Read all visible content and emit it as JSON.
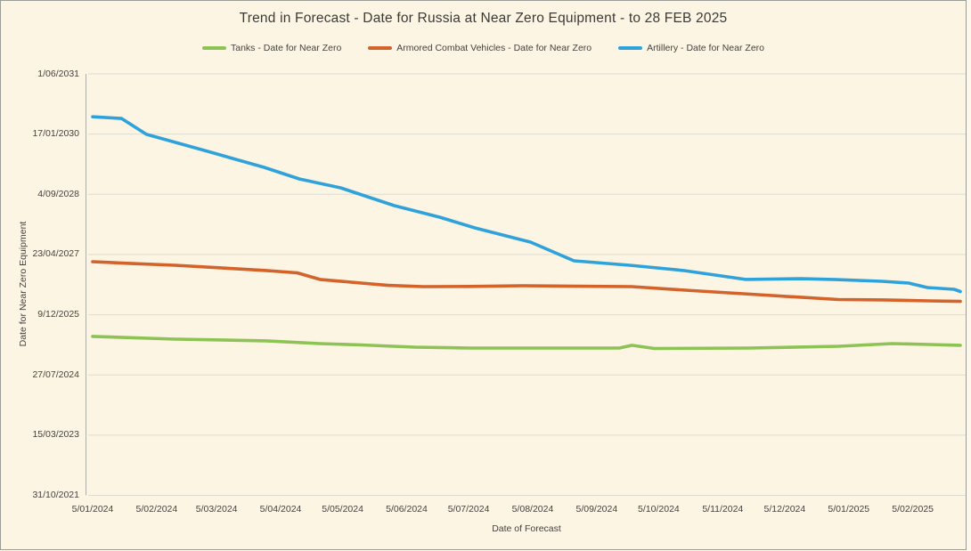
{
  "colors": {
    "background": "#fcf5e3",
    "border": "#9d9d98",
    "gridline": "#dddcd3",
    "axis": "#aeada6",
    "text": "#45423e",
    "title_text": "#3b3a36"
  },
  "chart_data": {
    "type": "line",
    "title": "Trend in Forecast - Date for Russia at Near Zero Equipment - to 28 FEB 2025",
    "xlabel": "Date of Forecast",
    "ylabel": "Date for Near Zero Equipment",
    "legend_position": "top",
    "grid": true,
    "x_domain": [
      "5/01/2024",
      "28/02/2025"
    ],
    "y_domain": [
      "31/10/2021",
      "1/06/2031"
    ],
    "x_ticks": [
      "5/01/2024",
      "5/02/2024",
      "5/03/2024",
      "5/04/2024",
      "5/05/2024",
      "5/06/2024",
      "5/07/2024",
      "5/08/2024",
      "5/09/2024",
      "5/10/2024",
      "5/11/2024",
      "5/12/2024",
      "5/01/2025",
      "5/02/2025"
    ],
    "y_ticks": [
      "1/06/2031",
      "17/01/2030",
      "4/09/2028",
      "23/04/2027",
      "9/12/2025",
      "27/07/2024",
      "15/03/2023",
      "31/10/2021"
    ],
    "series": [
      {
        "name": "Tanks - Date for Near Zero",
        "color": "#8dc254",
        "points": [
          [
            "5/01/2024",
            "12/06/2025"
          ],
          [
            "14/02/2024",
            "20/05/2025"
          ],
          [
            "29/03/2024",
            "6/05/2025"
          ],
          [
            "24/04/2024",
            "13/04/2025"
          ],
          [
            "14/05/2024",
            "2/04/2025"
          ],
          [
            "9/06/2024",
            "15/03/2025"
          ],
          [
            "5/07/2024",
            "7/03/2025"
          ],
          [
            "16/09/2024",
            "7/03/2025"
          ],
          [
            "22/09/2024",
            "30/03/2025"
          ],
          [
            "3/10/2024",
            "4/03/2025"
          ],
          [
            "18/11/2024",
            "7/03/2025"
          ],
          [
            "31/12/2024",
            "22/03/2025"
          ],
          [
            "26/01/2025",
            "13/04/2025"
          ],
          [
            "13/02/2025",
            "6/04/2025"
          ],
          [
            "28/02/2025",
            "30/03/2025"
          ]
        ]
      },
      {
        "name": "Armored Combat Vehicles - Date for Near Zero",
        "color": "#d3632b",
        "points": [
          [
            "5/01/2024",
            "22/02/2027"
          ],
          [
            "23/01/2024",
            "8/02/2027"
          ],
          [
            "14/02/2024",
            "24/01/2027"
          ],
          [
            "7/03/2024",
            "2/01/2027"
          ],
          [
            "29/03/2024",
            "11/12/2026"
          ],
          [
            "13/04/2024",
            "22/11/2026"
          ],
          [
            "24/04/2024",
            "28/09/2026"
          ],
          [
            "14/05/2024",
            "29/08/2026"
          ],
          [
            "27/05/2024",
            "10/08/2026"
          ],
          [
            "13/06/2024",
            "30/07/2026"
          ],
          [
            "5/07/2024",
            "1/08/2026"
          ],
          [
            "31/07/2024",
            "7/08/2026"
          ],
          [
            "22/09/2024",
            "30/07/2026"
          ],
          [
            "18/10/2024",
            "1/07/2026"
          ],
          [
            "22/11/2024",
            "25/05/2026"
          ],
          [
            "31/12/2024",
            "14/04/2026"
          ],
          [
            "22/01/2025",
            "11/04/2026"
          ],
          [
            "13/02/2025",
            "3/04/2026"
          ],
          [
            "28/02/2025",
            "30/03/2026"
          ]
        ]
      },
      {
        "name": "Artillery - Date for Near Zero",
        "color": "#2fa1db",
        "points": [
          [
            "5/01/2024",
            "10/06/2030"
          ],
          [
            "19/01/2024",
            "27/05/2030"
          ],
          [
            "31/01/2024",
            "15/01/2030"
          ],
          [
            "2/03/2024",
            "20/08/2029"
          ],
          [
            "28/03/2024",
            "16/04/2029"
          ],
          [
            "14/04/2024",
            "10/01/2029"
          ],
          [
            "4/05/2024",
            "28/10/2028"
          ],
          [
            "30/05/2024",
            "2/06/2028"
          ],
          [
            "21/06/2024",
            "27/02/2028"
          ],
          [
            "8/07/2024",
            "30/11/2027"
          ],
          [
            "4/08/2024",
            "4/08/2027"
          ],
          [
            "25/08/2024",
            "2/03/2027"
          ],
          [
            "21/09/2024",
            "24/01/2027"
          ],
          [
            "17/10/2024",
            "11/12/2026"
          ],
          [
            "16/11/2024",
            "28/09/2026"
          ],
          [
            "13/12/2024",
            "4/10/2026"
          ],
          [
            "30/12/2024",
            "27/09/2026"
          ],
          [
            "21/01/2025",
            "13/09/2026"
          ],
          [
            "3/02/2025",
            "29/08/2026"
          ],
          [
            "12/02/2025",
            "23/07/2026"
          ],
          [
            "25/02/2025",
            "8/07/2026"
          ],
          [
            "28/02/2025",
            "20/06/2026"
          ]
        ]
      }
    ]
  }
}
